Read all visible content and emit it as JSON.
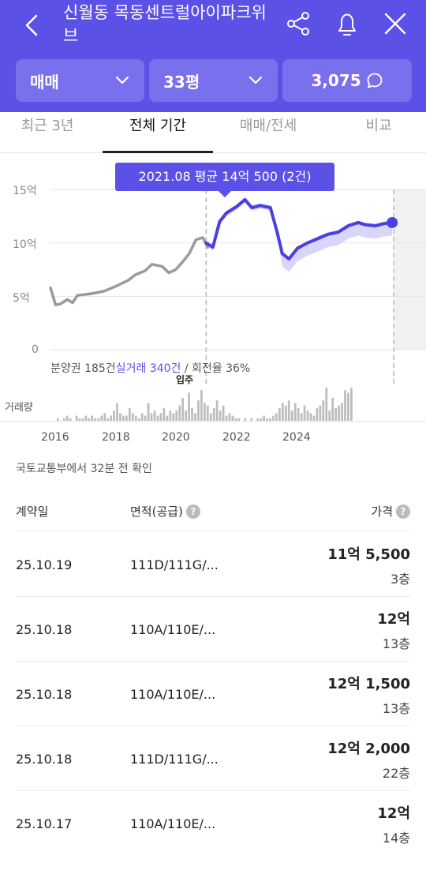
{
  "header": {
    "title": "신월동 목동센트럴아이파크위브",
    "filters": {
      "trade_type": "매매",
      "size": "33평",
      "count": "3,075"
    }
  },
  "tabs": [
    "최근 3년",
    "전체 기간",
    "매매/전세",
    "비교"
  ],
  "chart": {
    "tooltip": "2021.08 평균 14억 500 (2건)",
    "stats": {
      "part1": "분양권 185건",
      "part2": "실거래 340건",
      "part3": " / 회전율 36%"
    },
    "movein_label": "입주",
    "volume_label": "거래량"
  },
  "chart_data": {
    "type": "line",
    "ylabel": "",
    "y_ticks": [
      "15억",
      "10억",
      "5억",
      "0"
    ],
    "x_ticks": [
      "2016",
      "2018",
      "2020",
      "2022",
      "2024"
    ],
    "ylim": [
      0,
      15
    ],
    "xlim": [
      2015.7,
      2026.8
    ],
    "series": [
      {
        "name": "분양권",
        "color": "#9a9a9a",
        "x": [
          2015.7,
          2015.85,
          2016.0,
          2016.2,
          2016.35,
          2016.5,
          2016.8,
          2017.0,
          2017.3,
          2017.6,
          2017.8,
          2018.0,
          2018.2,
          2018.5,
          2018.7,
          2019.0,
          2019.2,
          2019.4,
          2019.6,
          2019.8,
          2020.0,
          2020.2,
          2020.35
        ],
        "y": [
          5.8,
          4.2,
          4.3,
          4.7,
          4.4,
          5.1,
          5.2,
          5.3,
          5.5,
          5.9,
          6.2,
          6.5,
          7.0,
          7.4,
          8.0,
          7.8,
          7.2,
          7.5,
          8.2,
          9.0,
          10.3,
          10.5,
          9.6
        ]
      },
      {
        "name": "실거래",
        "color": "#4a3fe0",
        "x": [
          2020.3,
          2020.5,
          2020.7,
          2020.9,
          2021.2,
          2021.45,
          2021.65,
          2021.9,
          2022.2,
          2022.4,
          2022.55,
          2022.75,
          2023.0,
          2023.3,
          2023.6,
          2023.9,
          2024.2,
          2024.5,
          2024.8,
          2025.0,
          2025.3,
          2025.55,
          2025.8
        ],
        "y": [
          10.0,
          9.6,
          12.0,
          12.8,
          13.4,
          14.05,
          13.3,
          13.5,
          13.3,
          11.0,
          9.0,
          8.5,
          9.5,
          10.0,
          10.4,
          10.8,
          11.0,
          11.6,
          11.9,
          11.7,
          11.6,
          11.8,
          11.9
        ]
      }
    ],
    "volume": [
      0,
      0,
      1,
      0,
      1,
      2,
      1,
      0,
      2,
      1,
      1,
      2,
      1,
      2,
      1,
      1,
      2,
      3,
      1,
      2,
      4,
      7,
      3,
      2,
      2,
      5,
      3,
      2,
      1,
      3,
      2,
      7,
      3,
      4,
      2,
      3,
      5,
      2,
      4,
      3,
      4,
      6,
      9,
      4,
      11,
      5,
      3,
      8,
      12,
      7,
      6,
      3,
      5,
      8,
      4,
      6,
      2,
      3,
      2,
      1,
      1,
      0,
      1,
      0,
      1,
      0,
      1,
      1,
      2,
      1,
      1,
      2,
      3,
      5,
      7,
      6,
      8,
      4,
      7,
      5,
      3,
      6,
      4,
      3,
      2,
      5,
      6,
      8,
      13,
      4,
      9,
      5,
      6,
      7,
      12,
      11,
      13
    ]
  },
  "confirm_text": "국토교통부에서 32분 전 확인",
  "table": {
    "headers": {
      "date": "계약일",
      "area": "면적(공급)",
      "price": "가격"
    },
    "rows": [
      {
        "date": "25.10.19",
        "area": "111D/111G/...",
        "price": "11억 5,500",
        "floor": "3층"
      },
      {
        "date": "25.10.18",
        "area": "110A/110E/...",
        "price": "12억",
        "floor": "13층"
      },
      {
        "date": "25.10.18",
        "area": "110A/110E/...",
        "price": "12억 1,500",
        "floor": "13층"
      },
      {
        "date": "25.10.18",
        "area": "111D/111G/...",
        "price": "12억 2,000",
        "floor": "22층"
      },
      {
        "date": "25.10.17",
        "area": "110A/110E/...",
        "price": "12억",
        "floor": "14층"
      }
    ]
  }
}
